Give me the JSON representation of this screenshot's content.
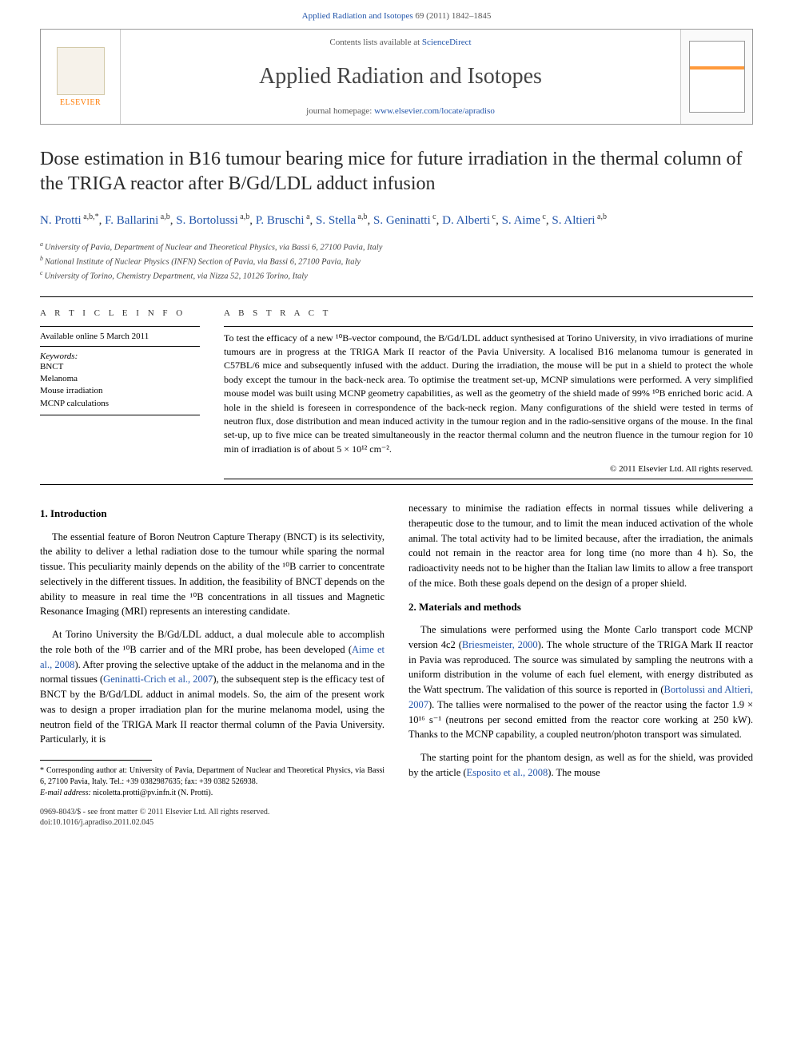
{
  "header": {
    "citation": "Applied Radiation and Isotopes 69 (2011) 1842–1845",
    "citation_journal": "Applied Radiation and Isotopes",
    "citation_rest": " 69 (2011) 1842–1845"
  },
  "banner": {
    "contents_prefix": "Contents lists available at ",
    "contents_link_text": "ScienceDirect",
    "journal_name": "Applied Radiation and Isotopes",
    "homepage_prefix": "journal homepage: ",
    "homepage_url_text": "www.elsevier.com/locate/apradiso",
    "publisher_logo_label": "ELSEVIER"
  },
  "article": {
    "title": "Dose estimation in B16 tumour bearing mice for future irradiation in the thermal column of the TRIGA reactor after B/Gd/LDL adduct infusion",
    "authors_html_parts": [
      {
        "name": "N. Protti",
        "affs": "a,b,",
        "corr": "*"
      },
      {
        "name": "F. Ballarini",
        "affs": "a,b"
      },
      {
        "name": "S. Bortolussi",
        "affs": "a,b"
      },
      {
        "name": "P. Bruschi",
        "affs": "a"
      },
      {
        "name": "S. Stella",
        "affs": "a,b"
      },
      {
        "name": "S. Geninatti",
        "affs": "c"
      },
      {
        "name": "D. Alberti",
        "affs": "c"
      },
      {
        "name": "S. Aime",
        "affs": "c"
      },
      {
        "name": "S. Altieri",
        "affs": "a,b"
      }
    ],
    "affiliations": [
      {
        "key": "a",
        "text": "University of Pavia, Department of Nuclear and Theoretical Physics, via Bassi 6, 27100 Pavia, Italy"
      },
      {
        "key": "b",
        "text": "National Institute of Nuclear Physics (INFN) Section of Pavia, via Bassi 6, 27100 Pavia, Italy"
      },
      {
        "key": "c",
        "text": "University of Torino, Chemistry Department, via Nizza 52, 10126 Torino, Italy"
      }
    ]
  },
  "info": {
    "header": "A R T I C L E   I N F O",
    "available": "Available online 5 March 2011",
    "keywords_label": "Keywords:",
    "keywords": [
      "BNCT",
      "Melanoma",
      "Mouse irradiation",
      "MCNP calculations"
    ]
  },
  "abstract": {
    "header": "A B S T R A C T",
    "text": "To test the efficacy of a new ¹⁰B-vector compound, the B/Gd/LDL adduct synthesised at Torino University, in vivo irradiations of murine tumours are in progress at the TRIGA Mark II reactor of the Pavia University. A localised B16 melanoma tumour is generated in C57BL/6 mice and subsequently infused with the adduct. During the irradiation, the mouse will be put in a shield to protect the whole body except the tumour in the back-neck area. To optimise the treatment set-up, MCNP simulations were performed. A very simplified mouse model was built using MCNP geometry capabilities, as well as the geometry of the shield made of 99% ¹⁰B enriched boric acid. A hole in the shield is foreseen in correspondence of the back-neck region. Many configurations of the shield were tested in terms of neutron flux, dose distribution and mean induced activity in the tumour region and in the radio-sensitive organs of the mouse. In the final set-up, up to five mice can be treated simultaneously in the reactor thermal column and the neutron fluence in the tumour region for 10 min of irradiation is of about 5 × 10¹² cm⁻².",
    "copyright": "© 2011 Elsevier Ltd. All rights reserved."
  },
  "body": {
    "section1_heading": "1. Introduction",
    "section1_p1": "The essential feature of Boron Neutron Capture Therapy (BNCT) is its selectivity, the ability to deliver a lethal radiation dose to the tumour while sparing the normal tissue. This peculiarity mainly depends on the ability of the ¹⁰B carrier to concentrate selectively in the different tissues. In addition, the feasibility of BNCT depends on the ability to measure in real time the ¹⁰B concentrations in all tissues and Magnetic Resonance Imaging (MRI) represents an interesting candidate.",
    "section1_p2_pre": "At Torino University the B/Gd/LDL adduct, a dual molecule able to accomplish the role both of the ¹⁰B carrier and of the MRI probe, has been developed (",
    "section1_p2_link1": "Aime et al., 2008",
    "section1_p2_mid1": "). After proving the selective uptake of the adduct in the melanoma and in the normal tissues (",
    "section1_p2_link2": "Geninatti-Crich et al., 2007",
    "section1_p2_mid2": "), the subsequent step is the efficacy test of BNCT by the B/Gd/LDL adduct in animal models. So, the aim of the present work was to design a proper irradiation plan for the murine melanoma model, using the neutron field of the TRIGA Mark II reactor thermal column of the Pavia University. Particularly, it is",
    "section1_p3_right": "necessary to minimise the radiation effects in normal tissues while delivering a therapeutic dose to the tumour, and to limit the mean induced activation of the whole animal. The total activity had to be limited because, after the irradiation, the animals could not remain in the reactor area for long time (no more than 4 h). So, the radioactivity needs not to be higher than the Italian law limits to allow a free transport of the mice. Both these goals depend on the design of a proper shield.",
    "section2_heading": "2. Materials and methods",
    "section2_p1_pre": "The simulations were performed using the Monte Carlo transport code MCNP version 4c2 (",
    "section2_p1_link1": "Briesmeister, 2000",
    "section2_p1_mid1": "). The whole structure of the TRIGA Mark II reactor in Pavia was reproduced. The source was simulated by sampling the neutrons with a uniform distribution in the volume of each fuel element, with energy distributed as the Watt spectrum. The validation of this source is reported in (",
    "section2_p1_link2": "Bortolussi and Altieri, 2007",
    "section2_p1_mid2": "). The tallies were normalised to the power of the reactor using the factor 1.9 × 10¹⁶ s⁻¹ (neutrons per second emitted from the reactor core working at 250 kW). Thanks to the MCNP capability, a coupled neutron/photon transport was simulated.",
    "section2_p2_pre": "The starting point for the phantom design, as well as for the shield, was provided by the article (",
    "section2_p2_link1": "Esposito et al., 2008",
    "section2_p2_post": "). The mouse"
  },
  "footnote": {
    "corr_label": "* Corresponding author at: University of Pavia, Department of Nuclear and Theoretical Physics, via Bassi 6, 27100 Pavia, Italy. Tel.: +39 0382987635; fax: +39 0382 526938.",
    "email_label": "E-mail address:",
    "email_value": " nicoletta.protti@pv.infn.it (N. Protti)."
  },
  "footer": {
    "issn_line": "0969-8043/$ - see front matter © 2011 Elsevier Ltd. All rights reserved.",
    "doi_line": "doi:10.1016/j.apradiso.2011.02.045"
  },
  "colors": {
    "link": "#2255aa",
    "elsevier_orange": "#ff7a00",
    "text": "#000000",
    "muted": "#555555",
    "border": "#999999"
  },
  "typography": {
    "title_fontsize": 24,
    "journal_name_fontsize": 28,
    "body_fontsize": 12.5,
    "abstract_fontsize": 12,
    "info_fontsize": 11,
    "footnote_fontsize": 10
  }
}
